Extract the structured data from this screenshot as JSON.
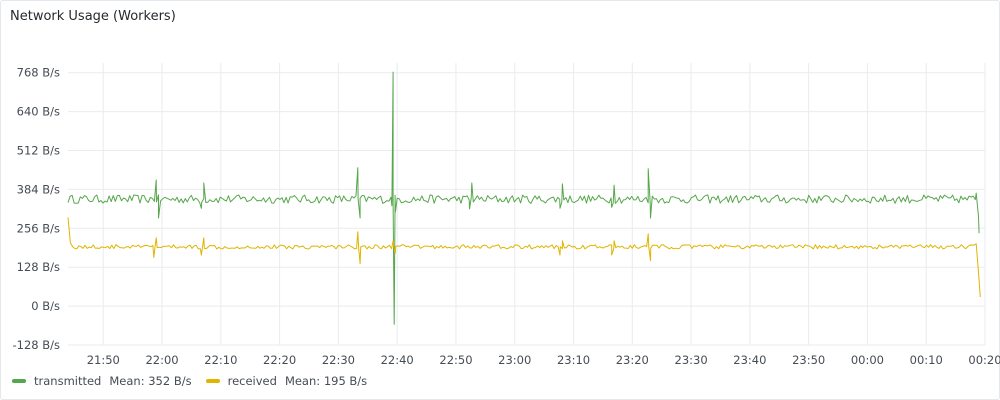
{
  "panel": {
    "title": "Network Usage (Workers)"
  },
  "colors": {
    "transmitted": "#56a64b",
    "received": "#e0b400",
    "grid": "#e9ebee"
  },
  "chart_data": {
    "type": "line",
    "title": "Network Usage (Workers)",
    "y_unit": "B/s",
    "ylim": [
      -128,
      800
    ],
    "y_ticks": [
      "768 B/s",
      "640 B/s",
      "512 B/s",
      "384 B/s",
      "256 B/s",
      "128 B/s",
      "0 B/s",
      "-128 B/s"
    ],
    "y_tick_values": [
      768,
      640,
      512,
      384,
      256,
      128,
      0,
      -128
    ],
    "x_ticks": [
      "21:50",
      "22:00",
      "22:10",
      "22:20",
      "22:30",
      "22:40",
      "22:50",
      "23:00",
      "23:10",
      "23:20",
      "23:30",
      "23:40",
      "23:50",
      "00:00",
      "00:10",
      "00:20"
    ],
    "x_tick_minutes": [
      0,
      10,
      20,
      30,
      40,
      50,
      60,
      70,
      80,
      90,
      100,
      110,
      120,
      130,
      140,
      150
    ],
    "xlim_minutes": [
      -6,
      150
    ],
    "grid": true,
    "legend_placement": "bottom-left",
    "series": [
      {
        "name": "transmitted",
        "mean": "352 B/s",
        "baseline": 352,
        "spikes": [
          [
            9,
            415
          ],
          [
            9.4,
            290
          ],
          [
            17.1,
            405
          ],
          [
            16.7,
            322
          ],
          [
            43.3,
            455
          ],
          [
            43.7,
            290
          ],
          [
            49.3,
            770
          ],
          [
            49.5,
            -60
          ],
          [
            49.7,
            310
          ],
          [
            49.1,
            330
          ],
          [
            62.7,
            405
          ],
          [
            62.3,
            320
          ],
          [
            78.1,
            402
          ],
          [
            77.7,
            322
          ],
          [
            86.9,
            398
          ],
          [
            86.5,
            325
          ],
          [
            92.7,
            452
          ],
          [
            93.1,
            290
          ],
          [
            148.5,
            372
          ],
          [
            148.9,
            295
          ],
          [
            149.0,
            240
          ]
        ]
      },
      {
        "name": "received",
        "mean": "195 B/s",
        "baseline": 195,
        "spikes": [
          [
            -6,
            292
          ],
          [
            -5.6,
            208
          ],
          [
            9,
            225
          ],
          [
            8.6,
            160
          ],
          [
            17.1,
            225
          ],
          [
            16.7,
            168
          ],
          [
            43.3,
            245
          ],
          [
            43.7,
            140
          ],
          [
            49.3,
            215
          ],
          [
            49.7,
            175
          ],
          [
            78.1,
            215
          ],
          [
            77.7,
            168
          ],
          [
            86.9,
            215
          ],
          [
            86.5,
            168
          ],
          [
            92.7,
            238
          ],
          [
            93.1,
            150
          ],
          [
            148.5,
            205
          ],
          [
            148.9,
            110
          ],
          [
            149.2,
            30
          ]
        ]
      }
    ]
  }
}
